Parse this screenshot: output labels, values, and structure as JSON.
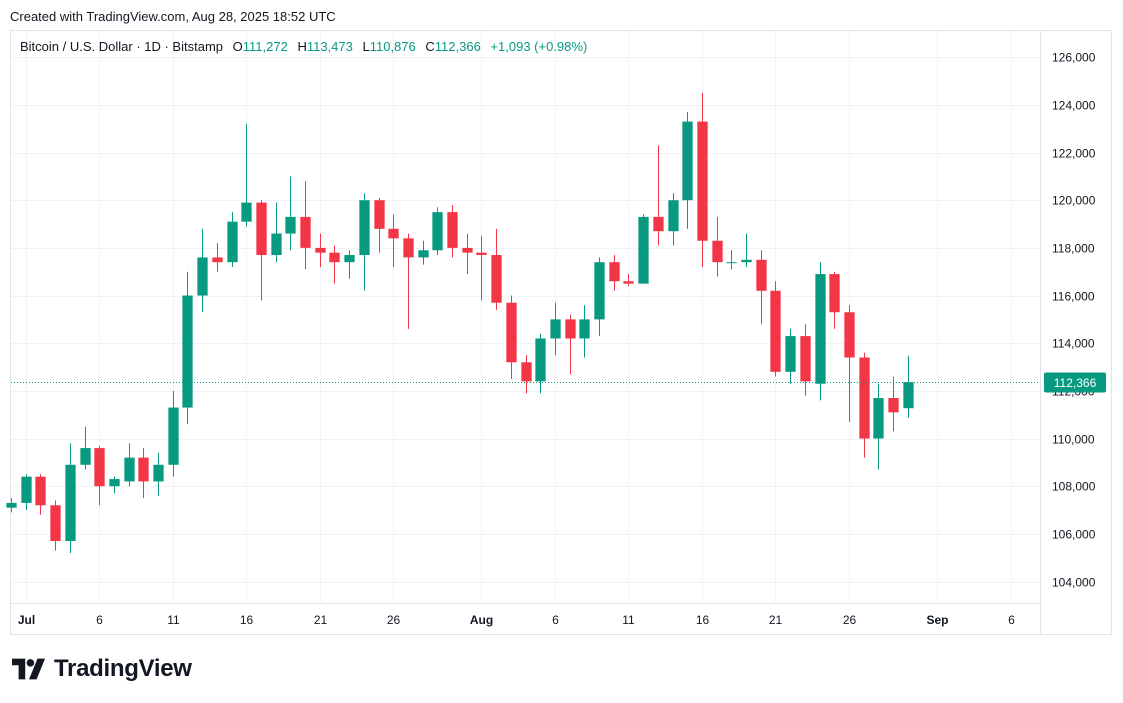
{
  "caption": "Created with TradingView.com, Aug 28, 2025 18:52 UTC",
  "legend": {
    "symbol": "Bitcoin / U.S. Dollar · 1D · Bitstamp",
    "o_label": "O",
    "o_value": "111,272",
    "h_label": "H",
    "h_value": "113,473",
    "l_label": "L",
    "l_value": "110,876",
    "c_label": "C",
    "c_value": "112,366",
    "change": "+1,093 (+0.98%)"
  },
  "brand": {
    "name": "TradingView",
    "logo_icon": "tradingview-logo-icon"
  },
  "colors": {
    "up": "#089981",
    "down": "#f23645",
    "grid": "#f0f3fa",
    "text": "#131722",
    "last_price": "#089981"
  },
  "chart_data": {
    "type": "candlestick",
    "title": "Bitcoin / U.S. Dollar · 1D · Bitstamp",
    "x_tick_labels": [
      {
        "date": "2025-07-01",
        "label": "Jul"
      },
      {
        "date": "2025-07-06",
        "label": "6"
      },
      {
        "date": "2025-07-11",
        "label": "11"
      },
      {
        "date": "2025-07-16",
        "label": "16"
      },
      {
        "date": "2025-07-21",
        "label": "21"
      },
      {
        "date": "2025-07-26",
        "label": "26"
      },
      {
        "date": "2025-08-01",
        "label": "Aug"
      },
      {
        "date": "2025-08-06",
        "label": "6"
      },
      {
        "date": "2025-08-11",
        "label": "11"
      },
      {
        "date": "2025-08-16",
        "label": "16"
      },
      {
        "date": "2025-08-21",
        "label": "21"
      },
      {
        "date": "2025-08-26",
        "label": "26"
      },
      {
        "date": "2025-09-01",
        "label": "Sep"
      },
      {
        "date": "2025-09-06",
        "label": "6"
      }
    ],
    "x_range": [
      "2025-06-30",
      "2025-09-08"
    ],
    "y_ticks": [
      104000,
      106000,
      108000,
      110000,
      112000,
      114000,
      116000,
      118000,
      120000,
      122000,
      124000,
      126000
    ],
    "y_tick_labels": [
      "104,000",
      "106,000",
      "108,000",
      "110,000",
      "112,000",
      "114,000",
      "116,000",
      "118,000",
      "120,000",
      "122,000",
      "124,000",
      "126,000"
    ],
    "ylim": [
      103100,
      127100
    ],
    "last_price": 112366,
    "last_price_label": "112,366",
    "grid": true,
    "candles": [
      {
        "date": "2025-06-30",
        "o": 107100,
        "h": 107500,
        "l": 106900,
        "c": 107300
      },
      {
        "date": "2025-07-01",
        "o": 107300,
        "h": 108500,
        "l": 107000,
        "c": 108400
      },
      {
        "date": "2025-07-02",
        "o": 108400,
        "h": 108500,
        "l": 106800,
        "c": 107200
      },
      {
        "date": "2025-07-03",
        "o": 107200,
        "h": 107400,
        "l": 105300,
        "c": 105700
      },
      {
        "date": "2025-07-04",
        "o": 105700,
        "h": 109800,
        "l": 105200,
        "c": 108900
      },
      {
        "date": "2025-07-05",
        "o": 108900,
        "h": 110500,
        "l": 108700,
        "c": 109600
      },
      {
        "date": "2025-07-06",
        "o": 109600,
        "h": 109700,
        "l": 107200,
        "c": 108000
      },
      {
        "date": "2025-07-07",
        "o": 108000,
        "h": 108400,
        "l": 107700,
        "c": 108300
      },
      {
        "date": "2025-07-08",
        "o": 108200,
        "h": 109800,
        "l": 108000,
        "c": 109200
      },
      {
        "date": "2025-07-09",
        "o": 109200,
        "h": 109600,
        "l": 107500,
        "c": 108200
      },
      {
        "date": "2025-07-10",
        "o": 108200,
        "h": 109400,
        "l": 107600,
        "c": 108900
      },
      {
        "date": "2025-07-11",
        "o": 108900,
        "h": 112000,
        "l": 108400,
        "c": 111300
      },
      {
        "date": "2025-07-12",
        "o": 111300,
        "h": 117000,
        "l": 110600,
        "c": 116000
      },
      {
        "date": "2025-07-13",
        "o": 116000,
        "h": 118800,
        "l": 115300,
        "c": 117600
      },
      {
        "date": "2025-07-14",
        "o": 117600,
        "h": 118200,
        "l": 117000,
        "c": 117400
      },
      {
        "date": "2025-07-15",
        "o": 117400,
        "h": 119500,
        "l": 117200,
        "c": 119100
      },
      {
        "date": "2025-07-16",
        "o": 119100,
        "h": 123200,
        "l": 118900,
        "c": 119900
      },
      {
        "date": "2025-07-17",
        "o": 119900,
        "h": 120000,
        "l": 115800,
        "c": 117700
      },
      {
        "date": "2025-07-18",
        "o": 117700,
        "h": 119900,
        "l": 117400,
        "c": 118600
      },
      {
        "date": "2025-07-19",
        "o": 118600,
        "h": 121000,
        "l": 117900,
        "c": 119300
      },
      {
        "date": "2025-07-20",
        "o": 119300,
        "h": 120800,
        "l": 117100,
        "c": 118000
      },
      {
        "date": "2025-07-21",
        "o": 118000,
        "h": 118600,
        "l": 117200,
        "c": 117800
      },
      {
        "date": "2025-07-22",
        "o": 117800,
        "h": 118100,
        "l": 116500,
        "c": 117400
      },
      {
        "date": "2025-07-23",
        "o": 117400,
        "h": 117900,
        "l": 116700,
        "c": 117700
      },
      {
        "date": "2025-07-24",
        "o": 117700,
        "h": 120300,
        "l": 116200,
        "c": 120000
      },
      {
        "date": "2025-07-25",
        "o": 120000,
        "h": 120100,
        "l": 117800,
        "c": 118800
      },
      {
        "date": "2025-07-26",
        "o": 118800,
        "h": 119400,
        "l": 117200,
        "c": 118400
      },
      {
        "date": "2025-07-27",
        "o": 118400,
        "h": 118600,
        "l": 114600,
        "c": 117600
      },
      {
        "date": "2025-07-28",
        "o": 117600,
        "h": 118300,
        "l": 117300,
        "c": 117900
      },
      {
        "date": "2025-07-29",
        "o": 117900,
        "h": 119700,
        "l": 117700,
        "c": 119500
      },
      {
        "date": "2025-07-30",
        "o": 119500,
        "h": 119800,
        "l": 117600,
        "c": 118000
      },
      {
        "date": "2025-07-31",
        "o": 118000,
        "h": 118600,
        "l": 116900,
        "c": 117800
      },
      {
        "date": "2025-08-01",
        "o": 117800,
        "h": 118500,
        "l": 115800,
        "c": 117700
      },
      {
        "date": "2025-08-02",
        "o": 117700,
        "h": 118800,
        "l": 115400,
        "c": 115700
      },
      {
        "date": "2025-08-03",
        "o": 115700,
        "h": 116000,
        "l": 112500,
        "c": 113200
      },
      {
        "date": "2025-08-04",
        "o": 113200,
        "h": 113500,
        "l": 111900,
        "c": 112400
      },
      {
        "date": "2025-08-05",
        "o": 112400,
        "h": 114400,
        "l": 111900,
        "c": 114200
      },
      {
        "date": "2025-08-06",
        "o": 114200,
        "h": 115700,
        "l": 113500,
        "c": 115000
      },
      {
        "date": "2025-08-07",
        "o": 115000,
        "h": 115200,
        "l": 112700,
        "c": 114200
      },
      {
        "date": "2025-08-08",
        "o": 114200,
        "h": 115600,
        "l": 113400,
        "c": 115000
      },
      {
        "date": "2025-08-09",
        "o": 115000,
        "h": 117600,
        "l": 114300,
        "c": 117400
      },
      {
        "date": "2025-08-10",
        "o": 117400,
        "h": 117700,
        "l": 116200,
        "c": 116600
      },
      {
        "date": "2025-08-11",
        "o": 116600,
        "h": 116900,
        "l": 116400,
        "c": 116500
      },
      {
        "date": "2025-08-12",
        "o": 116500,
        "h": 119400,
        "l": 116500,
        "c": 119300
      },
      {
        "date": "2025-08-13",
        "o": 119300,
        "h": 122300,
        "l": 118100,
        "c": 118700
      },
      {
        "date": "2025-08-14",
        "o": 118700,
        "h": 120300,
        "l": 118100,
        "c": 120000
      },
      {
        "date": "2025-08-15",
        "o": 120000,
        "h": 123700,
        "l": 118800,
        "c": 123300
      },
      {
        "date": "2025-08-16",
        "o": 123300,
        "h": 124500,
        "l": 117200,
        "c": 118300
      },
      {
        "date": "2025-08-17",
        "o": 118300,
        "h": 119300,
        "l": 116800,
        "c": 117400
      },
      {
        "date": "2025-08-18",
        "o": 117400,
        "h": 117900,
        "l": 117100,
        "c": 117400
      },
      {
        "date": "2025-08-19",
        "o": 117400,
        "h": 118600,
        "l": 117200,
        "c": 117500
      },
      {
        "date": "2025-08-20",
        "o": 117500,
        "h": 117900,
        "l": 114800,
        "c": 116200
      },
      {
        "date": "2025-08-21",
        "o": 116200,
        "h": 116600,
        "l": 112600,
        "c": 112800
      },
      {
        "date": "2025-08-22",
        "o": 112800,
        "h": 114600,
        "l": 112300,
        "c": 114300
      },
      {
        "date": "2025-08-23",
        "o": 114300,
        "h": 114800,
        "l": 111800,
        "c": 112400
      },
      {
        "date": "2025-08-24",
        "o": 112300,
        "h": 117400,
        "l": 111600,
        "c": 116900
      },
      {
        "date": "2025-08-25",
        "o": 116900,
        "h": 117000,
        "l": 114600,
        "c": 115300
      },
      {
        "date": "2025-08-26",
        "o": 115300,
        "h": 115600,
        "l": 110700,
        "c": 113400
      },
      {
        "date": "2025-08-27",
        "o": 113400,
        "h": 113600,
        "l": 109200,
        "c": 110000
      },
      {
        "date": "2025-08-28",
        "o": 110000,
        "h": 112300,
        "l": 108700,
        "c": 111700
      },
      {
        "date": "2025-08-29",
        "o": 111700,
        "h": 112600,
        "l": 110300,
        "c": 111100
      },
      {
        "date": "2025-08-30",
        "o": 111272,
        "h": 113473,
        "l": 110876,
        "c": 112366
      }
    ]
  }
}
